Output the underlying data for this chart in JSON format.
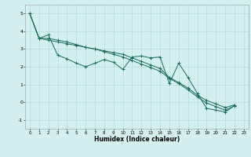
{
  "xlabel": "Humidex (Indice chaleur)",
  "background_color": "#d4f0ee",
  "grid_color": "#b8dcd8",
  "line_color": "#1a6b5e",
  "x_values": [
    0,
    1,
    2,
    3,
    4,
    5,
    6,
    7,
    8,
    9,
    10,
    11,
    12,
    13,
    14,
    15,
    16,
    17,
    18,
    19,
    20,
    21,
    22,
    23
  ],
  "line1": [
    5.0,
    3.6,
    3.8,
    2.65,
    2.45,
    2.2,
    2.0,
    2.2,
    2.4,
    2.25,
    1.85,
    2.55,
    2.6,
    2.5,
    2.55,
    1.05,
    2.2,
    1.4,
    0.5,
    -0.35,
    -0.45,
    -0.55,
    -0.2,
    null
  ],
  "line2": [
    5.0,
    3.6,
    3.5,
    3.4,
    3.3,
    3.2,
    3.1,
    3.0,
    2.9,
    2.8,
    2.7,
    2.5,
    2.3,
    2.1,
    1.9,
    1.4,
    1.1,
    0.8,
    0.4,
    0.1,
    -0.1,
    -0.3,
    -0.15,
    null
  ],
  "line3": [
    5.0,
    3.6,
    3.6,
    3.5,
    3.4,
    3.25,
    3.1,
    3.0,
    2.85,
    2.7,
    2.55,
    2.35,
    2.15,
    1.95,
    1.75,
    1.35,
    1.05,
    0.7,
    0.3,
    -0.05,
    -0.25,
    -0.45,
    -0.2,
    null
  ],
  "ylim": [
    -1.5,
    5.5
  ],
  "xlim": [
    -0.5,
    23.5
  ],
  "yticks": [
    -1,
    0,
    1,
    2,
    3,
    4,
    5
  ],
  "xticks": [
    0,
    1,
    2,
    3,
    4,
    5,
    6,
    7,
    8,
    9,
    10,
    11,
    12,
    13,
    14,
    15,
    16,
    17,
    18,
    19,
    20,
    21,
    22,
    23
  ]
}
